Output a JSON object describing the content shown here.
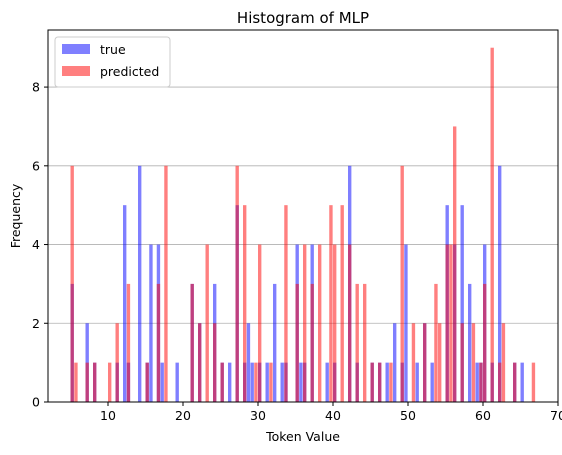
{
  "chart_data": {
    "type": "bar",
    "title": "Histogram of MLP",
    "xlabel": "Token Value",
    "ylabel": "Frequency",
    "xlim": [
      2,
      70
    ],
    "ylim": [
      0,
      9.45
    ],
    "xticks": [
      10,
      20,
      30,
      40,
      50,
      60,
      70
    ],
    "yticks": [
      0,
      2,
      4,
      6,
      8
    ],
    "grid": "y",
    "legend_position": "top-left",
    "bin_width": 0.5,
    "series": [
      {
        "name": "true",
        "color": "#0000ff",
        "alpha": 0.5,
        "x": [
          5,
          7,
          8,
          11,
          12,
          12.5,
          14,
          15,
          15.5,
          16.5,
          17,
          19,
          21,
          22,
          24,
          25,
          26,
          27,
          28,
          28.5,
          29,
          30,
          31,
          32,
          33,
          33.5,
          35,
          35.5,
          36,
          37,
          39,
          40,
          42,
          43,
          45,
          46,
          47,
          48,
          49,
          49.5,
          51,
          52,
          53,
          55,
          56,
          57,
          58,
          59,
          59.5,
          60,
          61,
          62,
          64,
          65
        ],
        "values": [
          3,
          2,
          1,
          1,
          5,
          1,
          6,
          1,
          4,
          4,
          1,
          1,
          3,
          2,
          3,
          1,
          1,
          5,
          1,
          2,
          1,
          1,
          1,
          3,
          1,
          1,
          4,
          1,
          1,
          4,
          1,
          1,
          6,
          1,
          1,
          1,
          1,
          2,
          1,
          4,
          1,
          2,
          1,
          5,
          4,
          5,
          3,
          1,
          1,
          4,
          1,
          6,
          1,
          1
        ]
      },
      {
        "name": "predicted",
        "color": "#ff0000",
        "alpha": 0.5,
        "x": [
          5,
          5.5,
          7,
          8,
          10,
          11,
          12.5,
          15,
          16.5,
          17.5,
          21,
          22,
          23,
          24,
          25,
          27,
          28,
          29.5,
          30,
          31.5,
          33.5,
          35,
          36,
          37,
          38,
          39.5,
          40,
          41,
          42,
          43,
          44,
          45,
          46,
          47.5,
          49,
          50.5,
          52,
          53.5,
          54,
          55,
          55.5,
          56,
          57,
          58.5,
          59.5,
          60,
          61,
          62,
          62.5,
          64,
          66.5
        ],
        "values": [
          6,
          1,
          1,
          1,
          1,
          2,
          3,
          1,
          3,
          6,
          3,
          2,
          4,
          2,
          1,
          6,
          5,
          1,
          4,
          1,
          5,
          3,
          4,
          3,
          4,
          5,
          4,
          5,
          4,
          3,
          3,
          1,
          1,
          1,
          6,
          2,
          2,
          3,
          2,
          4,
          4,
          7,
          2,
          2,
          1,
          3,
          9,
          1,
          2,
          1,
          1
        ]
      }
    ]
  }
}
